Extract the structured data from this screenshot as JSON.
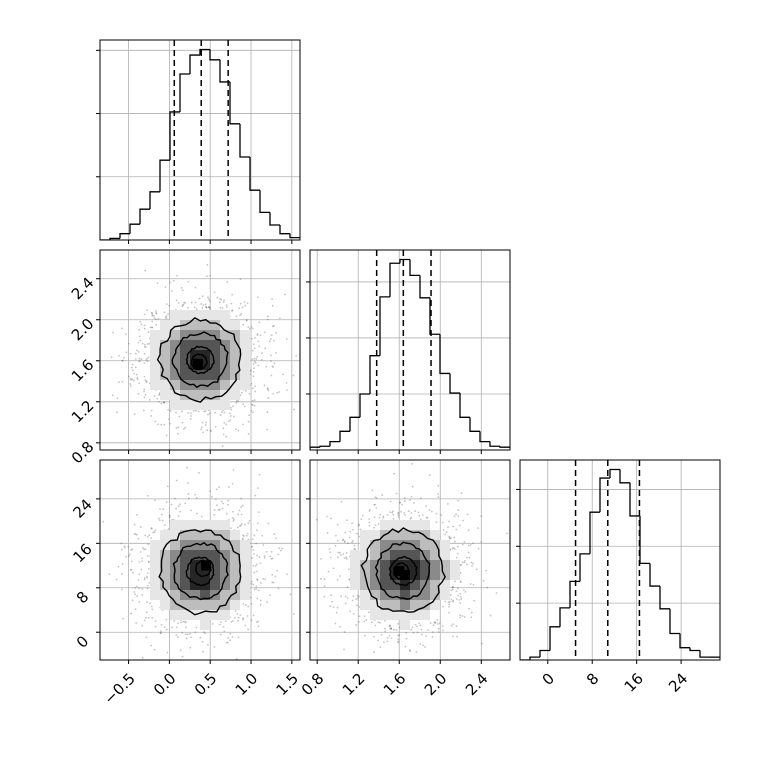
{
  "chart_data": {
    "type": "corner",
    "colors": {
      "line": "#000000",
      "grid": "#b0b0b0",
      "points": "#555555",
      "density": [
        "#ffffff",
        "#e6e6e6",
        "#bdbdbd",
        "#8a8a8a",
        "#555555",
        "#262626",
        "#000000"
      ]
    },
    "parameters": [
      {
        "range": [
          -0.85,
          1.6
        ],
        "ticks": [
          -0.5,
          0.0,
          0.5,
          1.0,
          1.5
        ],
        "tick_labels": [
          "−0.5",
          "0.0",
          "0.5",
          "1.0",
          "1.5"
        ],
        "quantiles": [
          0.06,
          0.39,
          0.72
        ]
      },
      {
        "range": [
          0.73,
          2.68
        ],
        "ticks": [
          0.8,
          1.2,
          1.6,
          2.0,
          2.4
        ],
        "tick_labels": [
          "0.8",
          "1.2",
          "1.6",
          "2.0",
          "2.4"
        ],
        "quantiles": [
          1.38,
          1.64,
          1.91
        ]
      },
      {
        "range": [
          -5,
          31
        ],
        "ticks": [
          0,
          8,
          16,
          24
        ],
        "tick_labels": [
          "0",
          "8",
          "16",
          "24"
        ],
        "quantiles": [
          5.0,
          10.8,
          16.5
        ]
      }
    ],
    "histograms": [
      {
        "bin_edges": [
          -0.85,
          -0.7275,
          -0.605,
          -0.4825,
          -0.36,
          -0.2375,
          -0.115,
          0.0075,
          0.13,
          0.2525,
          0.375,
          0.4975,
          0.62,
          0.7425,
          0.865,
          0.9875,
          1.11,
          1.2325,
          1.355,
          1.4775,
          1.6
        ],
        "counts": [
          0,
          10,
          40,
          100,
          195,
          305,
          505,
          810,
          1050,
          1170,
          1205,
          1140,
          1000,
          735,
          525,
          315,
          175,
          95,
          40,
          15
        ]
      },
      {
        "bin_edges": [
          0.73,
          0.8275,
          0.925,
          1.0225,
          1.12,
          1.2175,
          1.315,
          1.4125,
          1.51,
          1.6075,
          1.705,
          1.8025,
          1.9,
          1.9975,
          2.095,
          2.1925,
          2.29,
          2.3875,
          2.485,
          2.5825,
          2.68
        ],
        "counts": [
          15,
          20,
          45,
          100,
          175,
          300,
          505,
          820,
          1000,
          1020,
          935,
          815,
          620,
          410,
          305,
          175,
          100,
          45,
          20,
          15
        ]
      },
      {
        "bin_edges": [
          -5,
          -3.2,
          -1.4,
          0.4,
          2.2,
          4.0,
          5.8,
          7.6,
          9.4,
          11.2,
          13.0,
          14.8,
          16.6,
          18.4,
          20.2,
          22.0,
          23.8,
          25.6,
          27.4,
          29.2,
          31
        ],
        "counts": [
          0,
          15,
          50,
          175,
          275,
          415,
          560,
          780,
          960,
          1005,
          935,
          760,
          510,
          390,
          270,
          140,
          65,
          50,
          15,
          15
        ]
      }
    ],
    "pairs": [
      {
        "x_param": 0,
        "y_param": 1,
        "center": [
          0.38,
          1.61
        ],
        "sigma": [
          0.33,
          0.26
        ],
        "peak": [
          0.35,
          1.57
        ]
      },
      {
        "x_param": 0,
        "y_param": 2,
        "center": [
          0.38,
          11.0
        ],
        "sigma": [
          0.33,
          5.0
        ],
        "peak": [
          0.45,
          12.0
        ]
      },
      {
        "x_param": 1,
        "y_param": 2,
        "center": [
          1.64,
          11.0
        ],
        "sigma": [
          0.26,
          5.0
        ],
        "peak": [
          1.6,
          11.0
        ]
      }
    ],
    "contour_levels": [
      0.5,
      1.0,
      1.5,
      2.0
    ],
    "grid": true,
    "tick_rotation": 45
  }
}
